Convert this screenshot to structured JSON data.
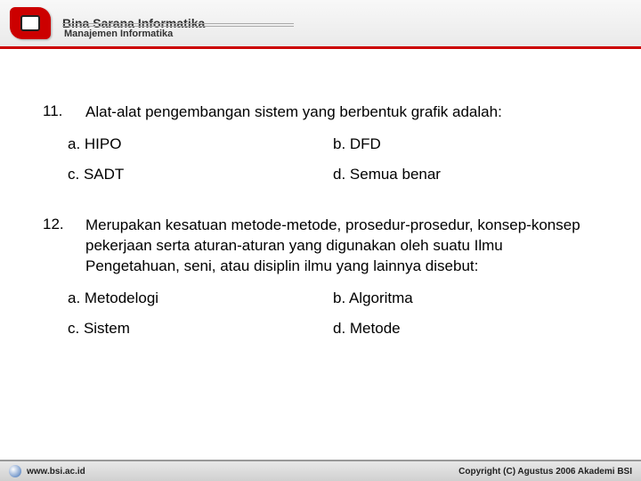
{
  "header": {
    "title": "Bina Sarana Informatika",
    "subtitle": "Manajemen Informatika"
  },
  "questions": [
    {
      "number": "11.",
      "text": "Alat-alat pengembangan sistem yang berbentuk grafik adalah:",
      "options": {
        "a": "a. HIPO",
        "b": "b. DFD",
        "c": "c. SADT",
        "d": "d. Semua benar"
      }
    },
    {
      "number": "12.",
      "text": "Merupakan kesatuan metode-metode, prosedur-prosedur, konsep-konsep pekerjaan serta aturan-aturan yang digunakan oleh suatu Ilmu Pengetahuan, seni, atau disiplin ilmu yang lainnya disebut:",
      "options": {
        "a": "a. Metodelogi",
        "b": "b. Algoritma",
        "c": "c. Sistem",
        "d": "d. Metode"
      }
    }
  ],
  "footer": {
    "url": "www.bsi.ac.id",
    "copyright": "Copyright (C) Agustus 2006 Akademi BSI"
  }
}
